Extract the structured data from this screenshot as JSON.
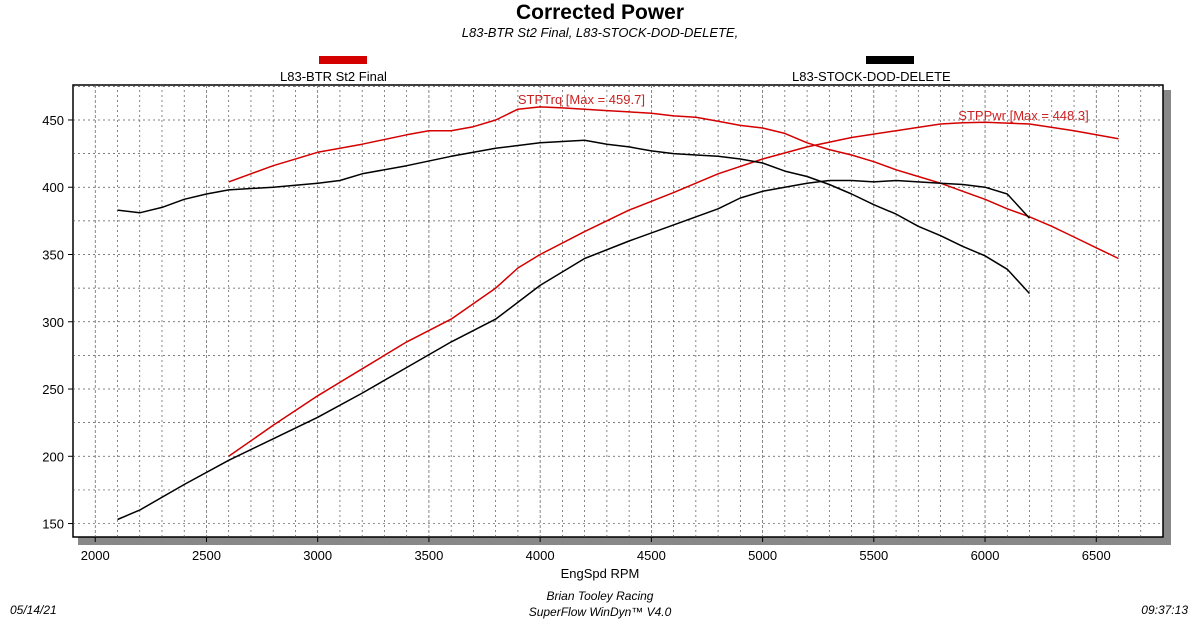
{
  "chart_data": {
    "type": "line",
    "title": "Corrected Power",
    "subtitle": "L83-BTR St2 Final, L83-STOCK-DOD-DELETE,",
    "xlabel": "EngSpd RPM",
    "ylabel": "",
    "xlim": [
      1900,
      6800
    ],
    "ylim": [
      140,
      476
    ],
    "x_ticks": [
      2000,
      2500,
      3000,
      3500,
      4000,
      4500,
      5000,
      5500,
      6000,
      6500
    ],
    "y_ticks": [
      150,
      200,
      250,
      300,
      350,
      400,
      450
    ],
    "grid": true,
    "legend": [
      {
        "label": "L83-BTR St2 Final",
        "color": "#d40000"
      },
      {
        "label": "L83-STOCK-DOD-DELETE",
        "color": "#000000"
      }
    ],
    "annotations": [
      {
        "text": "STPTrq [Max = 459.7]",
        "color": "#cc2222",
        "x": 3900,
        "y": 459
      },
      {
        "text": "STPPwr [Max = 448.3]",
        "color": "#cc2222",
        "x": 5880,
        "y": 447
      }
    ],
    "series": [
      {
        "name": "L83-BTR St2 Final",
        "metric": "STPTrq",
        "color": "#d40000",
        "x": [
          2600,
          2800,
          3000,
          3200,
          3400,
          3500,
          3600,
          3700,
          3800,
          3900,
          4000,
          4100,
          4200,
          4300,
          4400,
          4500,
          4600,
          4700,
          4800,
          4900,
          5000,
          5100,
          5200,
          5300,
          5400,
          5500,
          5600,
          5700,
          5800,
          5900,
          6000,
          6100,
          6200,
          6300,
          6400,
          6500,
          6600
        ],
        "values": [
          404,
          416,
          426,
          432,
          439,
          442,
          442,
          445,
          450,
          458,
          459.7,
          459,
          458,
          457,
          456,
          455,
          453,
          452,
          449,
          446,
          444,
          440,
          433,
          428,
          424,
          419,
          413,
          408,
          403,
          397,
          391,
          384,
          378,
          371,
          363,
          355,
          347
        ]
      },
      {
        "name": "L83-BTR St2 Final",
        "metric": "STPPwr",
        "color": "#d40000",
        "x": [
          2600,
          2800,
          3000,
          3200,
          3400,
          3600,
          3800,
          3900,
          4000,
          4200,
          4400,
          4600,
          4800,
          5000,
          5200,
          5400,
          5600,
          5800,
          5900,
          6000,
          6200,
          6400,
          6600
        ],
        "values": [
          200,
          223,
          245,
          265,
          285,
          302,
          325,
          340,
          350,
          367,
          383,
          396,
          410,
          421,
          430,
          437,
          442,
          447,
          448,
          448.3,
          447,
          442,
          436
        ]
      },
      {
        "name": "L83-STOCK-DOD-DELETE",
        "metric": "STPTrq",
        "color": "#000000",
        "x": [
          2100,
          2200,
          2300,
          2400,
          2500,
          2600,
          2800,
          3000,
          3100,
          3200,
          3400,
          3600,
          3800,
          4000,
          4100,
          4200,
          4300,
          4400,
          4500,
          4600,
          4700,
          4800,
          4900,
          5000,
          5100,
          5200,
          5300,
          5400,
          5500,
          5600,
          5700,
          5800,
          5900,
          6000,
          6100,
          6200
        ],
        "values": [
          383,
          381,
          385,
          391,
          395,
          398,
          400,
          403,
          405,
          410,
          416,
          423,
          429,
          433,
          434,
          435,
          432,
          430,
          427,
          425,
          424,
          423,
          421,
          418,
          412,
          408,
          402,
          395,
          387,
          380,
          371,
          364,
          356,
          349,
          339,
          321
        ]
      },
      {
        "name": "L83-STOCK-DOD-DELETE",
        "metric": "STPPwr",
        "color": "#000000",
        "x": [
          2100,
          2200,
          2400,
          2600,
          2800,
          3000,
          3200,
          3400,
          3600,
          3800,
          4000,
          4200,
          4400,
          4600,
          4800,
          4900,
          5000,
          5100,
          5200,
          5300,
          5400,
          5500,
          5600,
          5700,
          5800,
          5900,
          6000,
          6100,
          6200
        ],
        "values": [
          153,
          160,
          179,
          197,
          213,
          229,
          247,
          266,
          285,
          302,
          327,
          347,
          360,
          372,
          384,
          392,
          397,
          400,
          403,
          405,
          405,
          404,
          405,
          404,
          403,
          402,
          400,
          395,
          377
        ]
      }
    ]
  },
  "footer": {
    "date": "05/14/21",
    "author": "Brian Tooley Racing",
    "software": "SuperFlow WinDyn™  V4.0",
    "time": "09:37:13"
  }
}
